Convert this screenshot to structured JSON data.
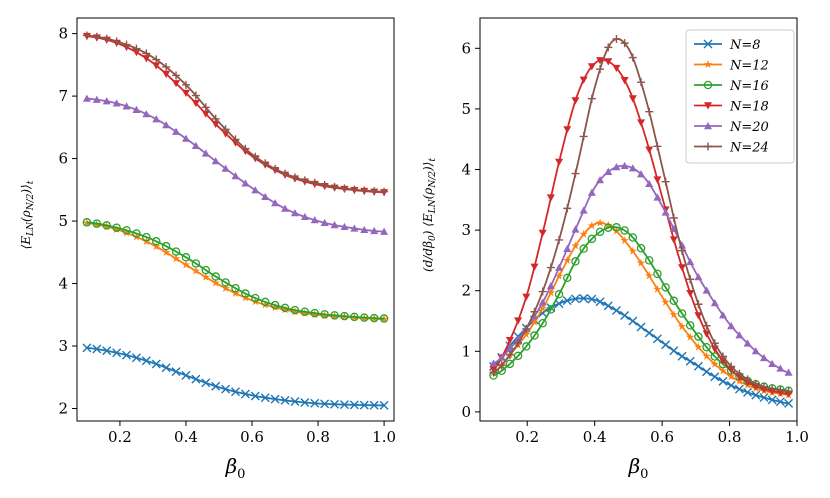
{
  "chart_data": [
    {
      "type": "line",
      "title": "",
      "xlabel": "β0",
      "ylabel": "⟨E_LN(ρ_{N/2})⟩_t",
      "xlim": [
        0.07,
        1.03
      ],
      "ylim": [
        1.8,
        8.25
      ],
      "xticks": [
        0.2,
        0.4,
        0.6,
        0.8,
        1.0
      ],
      "xtick_labels": [
        "0.2",
        "0.4",
        "0.6",
        "0.8",
        "1.0"
      ],
      "yticks": [
        2,
        3,
        4,
        5,
        6,
        7,
        8
      ],
      "ytick_labels": [
        "2",
        "3",
        "4",
        "5",
        "6",
        "7",
        "8"
      ],
      "x": [
        0.1,
        0.2,
        0.3,
        0.4,
        0.5,
        0.6,
        0.7,
        0.8,
        0.9,
        1.0
      ],
      "series": [
        {
          "name": "N=8",
          "values": [
            2.97,
            2.88,
            2.73,
            2.53,
            2.34,
            2.21,
            2.13,
            2.08,
            2.06,
            2.05
          ]
        },
        {
          "name": "N=12",
          "values": [
            4.97,
            4.85,
            4.62,
            4.3,
            3.98,
            3.73,
            3.58,
            3.5,
            3.46,
            3.43
          ]
        },
        {
          "name": "N=16",
          "values": [
            4.98,
            4.88,
            4.7,
            4.42,
            4.08,
            3.79,
            3.61,
            3.52,
            3.47,
            3.44
          ]
        },
        {
          "name": "N=18",
          "values": [
            7.96,
            7.83,
            7.53,
            7.05,
            6.5,
            6.04,
            5.74,
            5.58,
            5.5,
            5.46
          ]
        },
        {
          "name": "N=20",
          "values": [
            6.96,
            6.87,
            6.66,
            6.32,
            5.92,
            5.53,
            5.2,
            5.0,
            4.89,
            4.83
          ]
        },
        {
          "name": "N=24",
          "values": [
            7.97,
            7.86,
            7.62,
            7.18,
            6.58,
            6.07,
            5.76,
            5.6,
            5.51,
            5.47
          ]
        }
      ]
    },
    {
      "type": "line",
      "title": "",
      "xlabel": "β0",
      "ylabel": "d/dβ0 ⟨E_LN(ρ_{N/2})⟩_t",
      "xlim": [
        0.06,
        1.0
      ],
      "ylim": [
        -0.15,
        6.5
      ],
      "xticks": [
        0.2,
        0.4,
        0.6,
        0.8,
        1.0
      ],
      "xtick_labels": [
        "0.2",
        "0.4",
        "0.6",
        "0.8",
        "1.0"
      ],
      "yticks": [
        0,
        1,
        2,
        3,
        4,
        5,
        6
      ],
      "ytick_labels": [
        "0",
        "1",
        "2",
        "3",
        "4",
        "5",
        "6"
      ],
      "x": [
        0.1,
        0.15,
        0.2,
        0.25,
        0.3,
        0.35,
        0.4,
        0.45,
        0.5,
        0.55,
        0.6,
        0.65,
        0.7,
        0.75,
        0.8,
        0.85,
        0.9,
        0.95,
        0.975
      ],
      "series": [
        {
          "name": "N=8",
          "values": [
            0.75,
            1.1,
            1.4,
            1.65,
            1.8,
            1.87,
            1.85,
            1.72,
            1.55,
            1.35,
            1.15,
            0.95,
            0.78,
            0.6,
            0.45,
            0.33,
            0.24,
            0.17,
            0.14
          ]
        },
        {
          "name": "N=12",
          "values": [
            0.65,
            0.95,
            1.3,
            1.75,
            2.3,
            2.8,
            3.1,
            3.05,
            2.75,
            2.35,
            1.9,
            1.48,
            1.12,
            0.82,
            0.6,
            0.45,
            0.35,
            0.3,
            0.28
          ]
        },
        {
          "name": "N=16",
          "values": [
            0.6,
            0.8,
            1.1,
            1.5,
            2.0,
            2.55,
            2.9,
            3.05,
            2.95,
            2.6,
            2.15,
            1.7,
            1.3,
            0.95,
            0.7,
            0.52,
            0.42,
            0.37,
            0.35
          ]
        },
        {
          "name": "N=18",
          "values": [
            0.7,
            1.2,
            1.95,
            3.05,
            4.25,
            5.25,
            5.75,
            5.75,
            5.35,
            4.55,
            3.55,
            2.55,
            1.7,
            1.1,
            0.72,
            0.5,
            0.38,
            0.32,
            0.3
          ]
        },
        {
          "name": "N=20",
          "values": [
            0.8,
            1.05,
            1.4,
            1.85,
            2.45,
            3.1,
            3.7,
            4.0,
            4.05,
            3.85,
            3.4,
            2.85,
            2.3,
            1.85,
            1.45,
            1.15,
            0.9,
            0.72,
            0.65
          ]
        },
        {
          "name": "N=24",
          "values": [
            0.65,
            0.95,
            1.4,
            2.05,
            2.95,
            4.1,
            5.35,
            6.1,
            6.0,
            5.2,
            4.05,
            2.85,
            1.9,
            1.2,
            0.78,
            0.55,
            0.42,
            0.36,
            0.34
          ]
        }
      ]
    }
  ],
  "legend": [
    {
      "label": "N=8",
      "color": "#1f77b4",
      "marker": "x"
    },
    {
      "label": "N=12",
      "color": "#ff7f0e",
      "marker": "star"
    },
    {
      "label": "N=16",
      "color": "#2ca02c",
      "marker": "circle"
    },
    {
      "label": "N=18",
      "color": "#d62728",
      "marker": "triangle-down"
    },
    {
      "label": "N=20",
      "color": "#9467bd",
      "marker": "triangle-up"
    },
    {
      "label": "N=24",
      "color": "#8c564b",
      "marker": "plus"
    }
  ]
}
